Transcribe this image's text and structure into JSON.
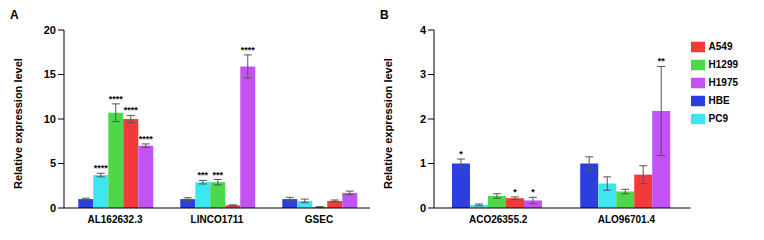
{
  "chart_data": [
    {
      "type": "bar",
      "title": "A",
      "y_label": "Relative expression level",
      "categories": [
        "AL162632.3",
        "LINCO1711",
        "GSEC"
      ],
      "ylim": [
        0,
        20
      ],
      "yticks": [
        0,
        5,
        10,
        15,
        20
      ],
      "series": [
        {
          "name": "HBE",
          "color": "#2b3fe0",
          "values": [
            1.0,
            1.0,
            1.0
          ],
          "errors": [
            0.1,
            0.15,
            0.2
          ],
          "significance": [
            null,
            null,
            null
          ]
        },
        {
          "name": "PC9",
          "color": "#3ee6f2",
          "values": [
            3.7,
            2.9,
            0.8
          ],
          "errors": [
            0.2,
            0.2,
            0.2
          ],
          "significance": [
            "****",
            "***",
            null
          ]
        },
        {
          "name": "H1299",
          "color": "#4cd84a",
          "values": [
            10.7,
            2.9,
            0.1
          ],
          "errors": [
            1.0,
            0.3,
            0.05
          ],
          "significance": [
            "****",
            "***",
            null
          ]
        },
        {
          "name": "A549",
          "color": "#f23a3a",
          "values": [
            10.0,
            0.3,
            0.8
          ],
          "errors": [
            0.4,
            0.05,
            0.1
          ],
          "significance": [
            "****",
            null,
            null
          ]
        },
        {
          "name": "H1975",
          "color": "#c253f2",
          "values": [
            7.0,
            15.9,
            1.7
          ],
          "errors": [
            0.2,
            1.3,
            0.2
          ],
          "significance": [
            "****",
            "****",
            null
          ]
        }
      ]
    },
    {
      "type": "bar",
      "title": "B",
      "y_label": "Relative expression level",
      "legend": "right",
      "categories": [
        "ACO26355.2",
        "ALO96701.4"
      ],
      "ylim": [
        0,
        4
      ],
      "yticks": [
        0,
        1,
        2,
        3,
        4
      ],
      "series": [
        {
          "name": "HBE",
          "color": "#2b3fe0",
          "values": [
            1.0,
            1.0
          ],
          "errors": [
            0.1,
            0.15
          ],
          "significance": [
            "*",
            null
          ]
        },
        {
          "name": "PC9",
          "color": "#3ee6f2",
          "values": [
            0.07,
            0.55
          ],
          "errors": [
            0.02,
            0.15
          ],
          "significance": [
            null,
            null
          ]
        },
        {
          "name": "H1299",
          "color": "#4cd84a",
          "values": [
            0.27,
            0.37
          ],
          "errors": [
            0.05,
            0.05
          ],
          "significance": [
            null,
            null
          ]
        },
        {
          "name": "A549",
          "color": "#f23a3a",
          "values": [
            0.22,
            0.75
          ],
          "errors": [
            0.03,
            0.2
          ],
          "significance": [
            "*",
            null
          ]
        },
        {
          "name": "H1975",
          "color": "#c253f2",
          "values": [
            0.17,
            2.18
          ],
          "errors": [
            0.07,
            1.0
          ],
          "significance": [
            "*",
            "**"
          ]
        }
      ]
    }
  ]
}
